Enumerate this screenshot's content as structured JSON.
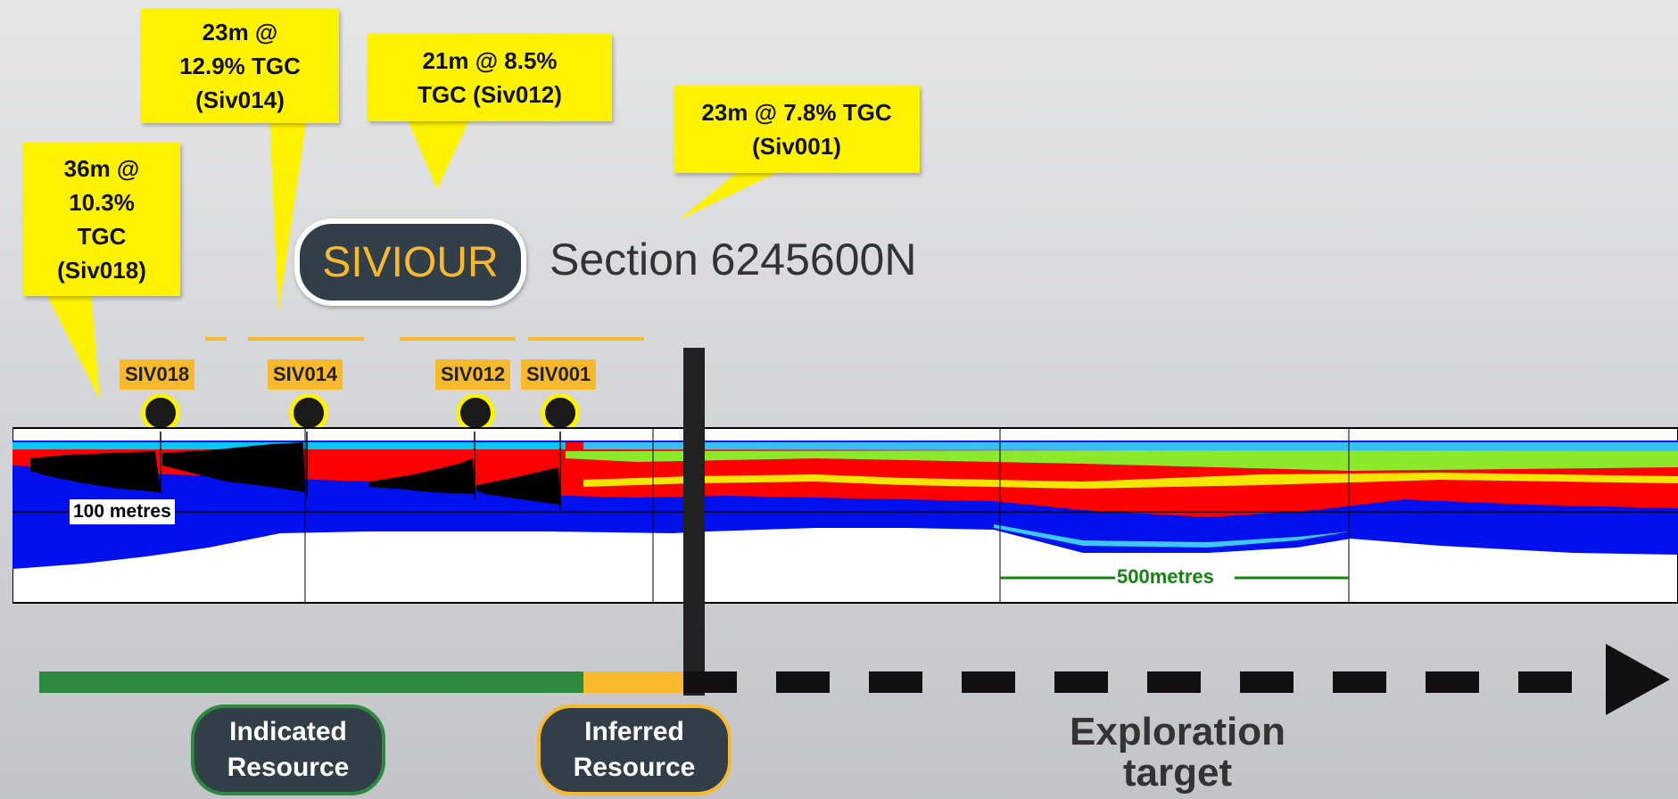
{
  "callouts": [
    {
      "id": "siv018",
      "text": "36m @\n10.3%\nTGC\n(Siv018)"
    },
    {
      "id": "siv014",
      "text": "23m @\n12.9% TGC\n(Siv014)"
    },
    {
      "id": "siv012",
      "text": "21m @ 8.5%\nTGC (Siv012)"
    },
    {
      "id": "siv001",
      "text": "23m @ 7.8% TGC\n(Siv001)"
    }
  ],
  "title": {
    "project": "SIVIOUR",
    "section": "Section 6245600N"
  },
  "drillholes": [
    "SIV018",
    "SIV014",
    "SIV012",
    "SIV001"
  ],
  "section": {
    "depth_scale": "100 metres",
    "horizontal_scale": "500metres"
  },
  "resources": {
    "indicated": "Indicated\nResource",
    "inferred": "Inferred\nResource",
    "exploration": "Exploration\ntarget"
  },
  "colors": {
    "callout": "#fff200",
    "title_text": "#f8b92c",
    "pill_bg": "#323e48",
    "indicated": "#2b8a3e",
    "inferred": "#f8b92c",
    "exploration": "#111111",
    "high_grade": "#ff0000",
    "background_grade": "#0000ff",
    "intercept": "#000000",
    "scale_500": "#14840e"
  }
}
